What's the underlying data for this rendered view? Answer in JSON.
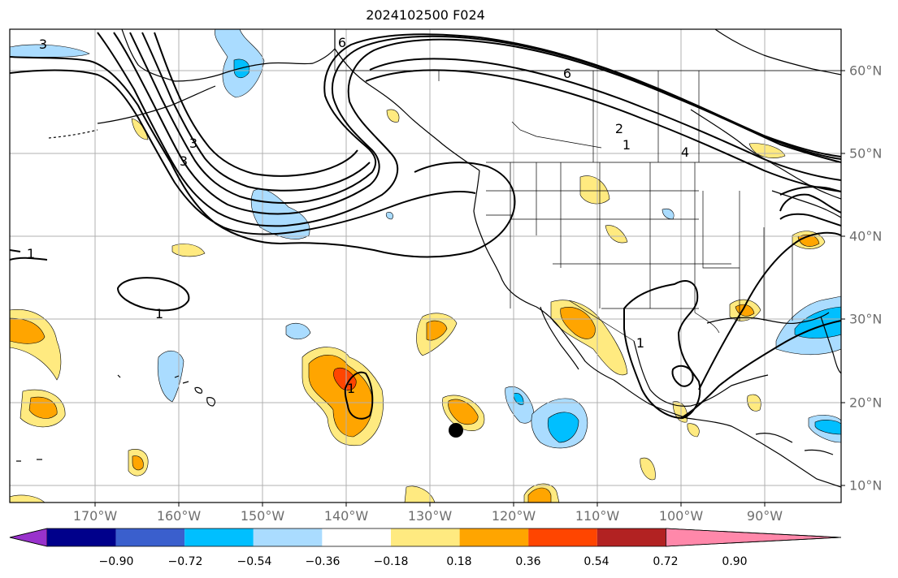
{
  "title": "2024102500 F024",
  "lon_labels": [
    "170°W",
    "160°W",
    "150°W",
    "140°W",
    "130°W",
    "120°W",
    "110°W",
    "100°W",
    "90°W"
  ],
  "lat_labels": [
    "60°N",
    "50°N",
    "40°N",
    "30°N",
    "20°N",
    "10°N"
  ],
  "colorbar": {
    "ticks": [
      "−0.90",
      "−0.72",
      "−0.54",
      "−0.36",
      "−0.18",
      "0.18",
      "0.36",
      "0.54",
      "0.72",
      "0.90"
    ],
    "colors": [
      "#9932cc",
      "#00008b",
      "#3a5fcd",
      "#00bfff",
      "#aadcff",
      "#ffffff",
      "#ffea80",
      "#ffa500",
      "#ff4500",
      "#b22222",
      "#ff88aa"
    ]
  },
  "contour_labels": [
    "3",
    "6",
    "6",
    "2",
    "1",
    "4",
    "3",
    "3",
    "1",
    "1",
    "1",
    "1"
  ],
  "marker": "storm-center-dot"
}
